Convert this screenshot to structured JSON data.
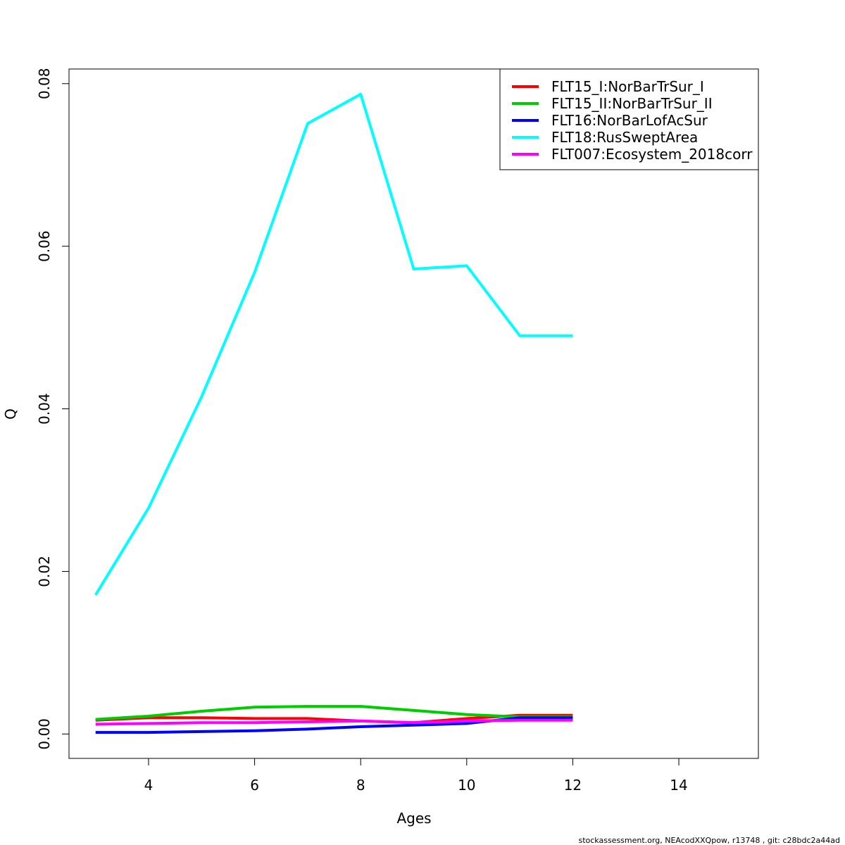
{
  "chart_data": {
    "type": "line",
    "xlabel": "Ages",
    "ylabel": "Q",
    "xlim": [
      2.5,
      15.5
    ],
    "ylim": [
      -0.003,
      0.0818
    ],
    "x_ticks": [
      4,
      6,
      8,
      10,
      12,
      14
    ],
    "y_ticks": [
      0.0,
      0.02,
      0.04,
      0.06,
      0.08
    ],
    "y_tick_labels": [
      "0.00",
      "0.02",
      "0.04",
      "0.06",
      "0.08"
    ],
    "grid": false,
    "legend_position": "top-right",
    "series": [
      {
        "name": "FLT15_I:NorBarTrSur_I",
        "color": "#ff0000",
        "x": [
          3,
          4,
          5,
          6,
          7,
          8,
          9,
          10,
          11,
          12
        ],
        "y": [
          0.0017,
          0.002,
          0.002,
          0.0019,
          0.0019,
          0.0016,
          0.0014,
          0.0019,
          0.0023,
          0.0023
        ]
      },
      {
        "name": "FLT15_II:NorBarTrSur_II",
        "color": "#00cd00",
        "x": [
          3,
          4,
          5,
          6,
          7,
          8,
          9,
          10,
          11,
          12
        ],
        "y": [
          0.0018,
          0.0022,
          0.0028,
          0.0033,
          0.0034,
          0.0034,
          0.0029,
          0.0024,
          0.0021,
          0.0021
        ]
      },
      {
        "name": "FLT16:NorBarLofAcSur",
        "color": "#0000ff",
        "x": [
          3,
          4,
          5,
          6,
          7,
          8,
          9,
          10,
          11,
          12
        ],
        "y": [
          0.0002,
          0.0002,
          0.0003,
          0.0004,
          0.0006,
          0.0009,
          0.0011,
          0.0013,
          0.002,
          0.002
        ]
      },
      {
        "name": "FLT18:RusSweptArea",
        "color": "#00ffff",
        "x": [
          3,
          4,
          5,
          6,
          7,
          8,
          9,
          10,
          11,
          12
        ],
        "y": [
          0.0171,
          0.0278,
          0.0415,
          0.0568,
          0.0751,
          0.0787,
          0.0572,
          0.0576,
          0.049,
          0.049
        ]
      },
      {
        "name": "FLT007:Ecosystem_2018corr",
        "color": "#ff00ff",
        "x": [
          3,
          4,
          5,
          6,
          7,
          8,
          9,
          10,
          11,
          12
        ],
        "y": [
          0.0012,
          0.0013,
          0.0014,
          0.0014,
          0.0015,
          0.0016,
          0.0014,
          0.0016,
          0.0017,
          0.0017
        ]
      }
    ]
  },
  "footer": "stockassessment.org, NEAcodXXQpow, r13748 , git: c28bdc2a44ad"
}
